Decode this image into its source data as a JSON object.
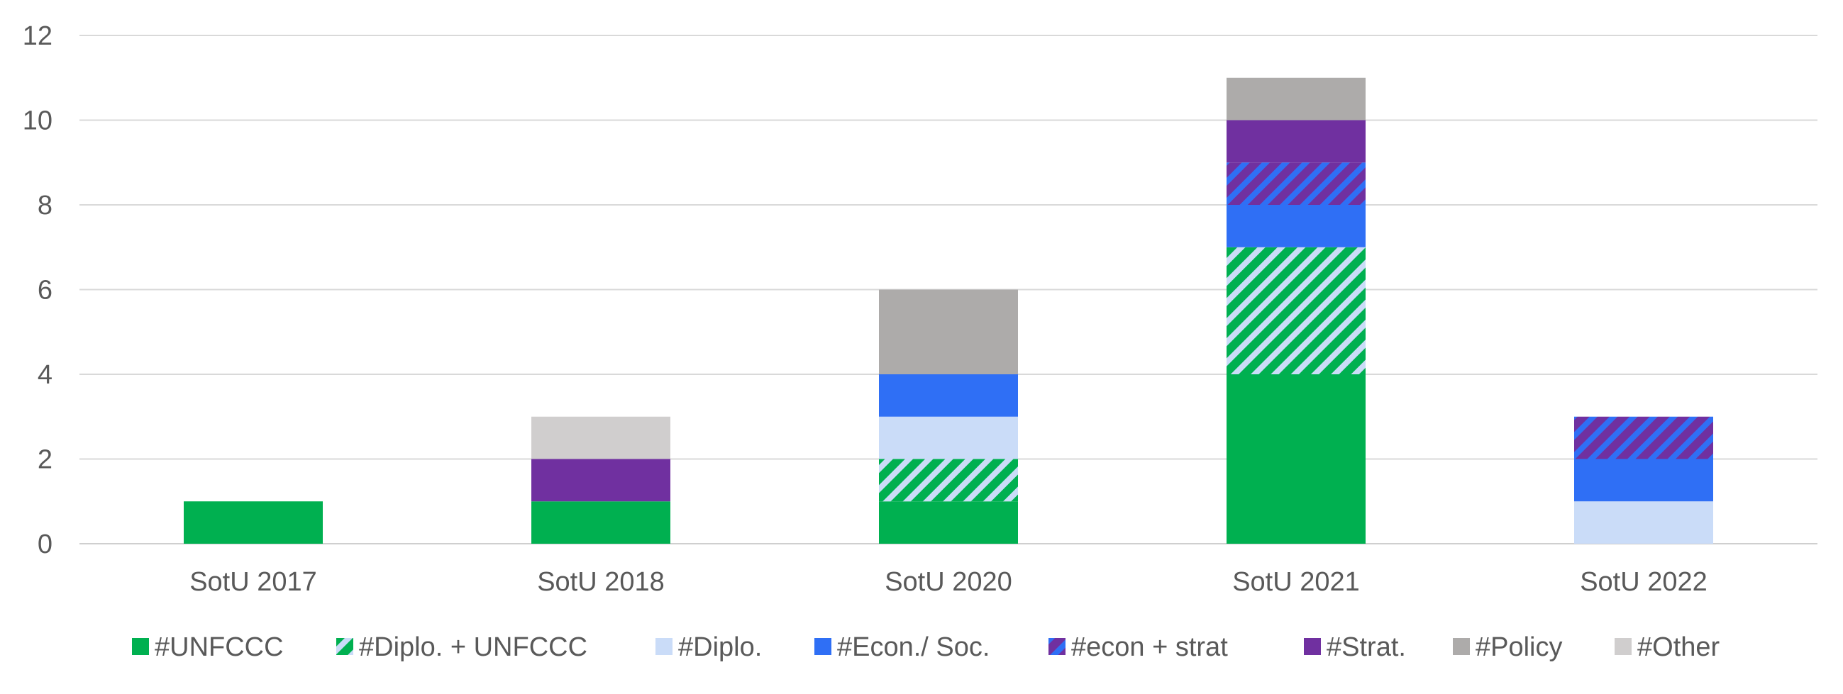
{
  "chart_data": {
    "type": "bar",
    "stacked": true,
    "categories": [
      "SotU 2017",
      "SotU 2018",
      "SotU 2020",
      "SotU 2021",
      "SotU 2022"
    ],
    "ylim": [
      0,
      12
    ],
    "yticks": [
      "0",
      "2",
      "4",
      "6",
      "8",
      "10",
      "12"
    ],
    "grid": true,
    "legend_position": "bottom",
    "series": [
      {
        "name": "#UNFCCC",
        "values": [
          1,
          1,
          1,
          4,
          0
        ],
        "color": "#00B050",
        "pattern": "solid"
      },
      {
        "name": "#Diplo. + UNFCCC",
        "values": [
          0,
          0,
          1,
          3,
          0
        ],
        "color": "#00B050",
        "stripe_color": "#CADCF8",
        "pattern": "diagonal-stripes"
      },
      {
        "name": "#Diplo.",
        "values": [
          0,
          0,
          1,
          0,
          1
        ],
        "color": "#CADCF8",
        "pattern": "solid"
      },
      {
        "name": "#Econ./ Soc.",
        "values": [
          0,
          0,
          1,
          1,
          1
        ],
        "color": "#2F6FF5",
        "pattern": "solid"
      },
      {
        "name": "#econ + strat",
        "values": [
          0,
          0,
          0,
          1,
          1
        ],
        "color": "#7030A0",
        "stripe_color": "#2F6FF5",
        "pattern": "diagonal-stripes"
      },
      {
        "name": "#Strat.",
        "values": [
          0,
          1,
          0,
          1,
          0
        ],
        "color": "#7030A0",
        "pattern": "solid"
      },
      {
        "name": "#Policy",
        "values": [
          0,
          0,
          2,
          1,
          0
        ],
        "color": "#ADABAA",
        "pattern": "solid"
      },
      {
        "name": "#Other",
        "values": [
          0,
          1,
          0,
          0,
          0
        ],
        "color": "#D0CECE",
        "pattern": "solid"
      }
    ]
  }
}
